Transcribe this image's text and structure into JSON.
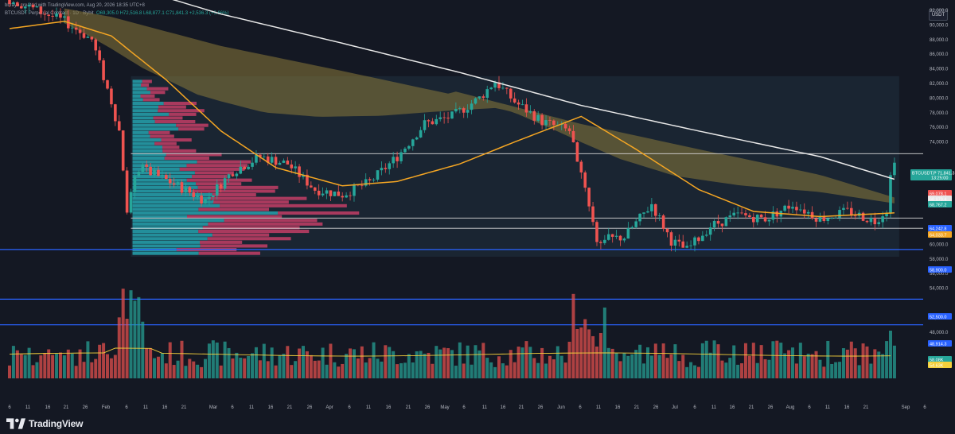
{
  "header": {
    "author_line": "bbrayb created with TradingView.com, Aug 20, 2026 18:35 UTC+8",
    "symbol_line": "BTCUSDT Perpetual Contract · 1D · Bybit",
    "ohlc_open": "O69,305.0",
    "ohlc_high": "H72,516.8",
    "ohlc_low": "L68,877.1",
    "ohlc_close": "C71,841.3",
    "ohlc_change": "+2,536.3 (+3.66%)",
    "currency": "USDT"
  },
  "colors": {
    "background": "#141823",
    "bull": "#26a69a",
    "bear": "#ef5350",
    "ema_orange": "#f5a623",
    "sma_white": "#e8e8e8",
    "cloud_fill": "#8a7a3a",
    "vp_bull": "#27b8c4",
    "vp_bear": "#e0436f",
    "level_blue": "#2962ff"
  },
  "chart_data": {
    "type": "candlestick",
    "title": "BTCUSDT Perpetual Contract · 1D · Bybit",
    "xlabel": "",
    "ylabel": "",
    "ylim": [
      42000,
      97000
    ],
    "x_ticks": [
      "6",
      "11",
      "16",
      "21",
      "26",
      "Feb",
      "6",
      "11",
      "16",
      "21",
      "Mar",
      "6",
      "11",
      "16",
      "21",
      "26",
      "Apr",
      "6",
      "11",
      "16",
      "21",
      "26",
      "May",
      "6",
      "11",
      "16",
      "21",
      "26",
      "Jun",
      "6",
      "11",
      "16",
      "21",
      "26",
      "Jul",
      "6",
      "11",
      "16",
      "21",
      "26",
      "Aug",
      "6",
      "11",
      "16",
      "21",
      "Sep",
      "6"
    ],
    "y_ticks": [
      "92,000.0",
      "90,000.0",
      "88,000.0",
      "86,000.0",
      "84,000.0",
      "82,000.0",
      "80,000.0",
      "78,000.0",
      "76,000.0",
      "74,000.0",
      "70,000.0",
      "66,000.0",
      "60,000.0",
      "58,000.0",
      "56,000.0",
      "54,000.0",
      "50,000.0",
      "48,000.0"
    ],
    "price_path": [
      {
        "date": "Jan 6",
        "close": 93500
      },
      {
        "date": "Jan 13",
        "close": 92000
      },
      {
        "date": "Jan 20",
        "close": 90500
      },
      {
        "date": "Jan 27",
        "close": 88000
      },
      {
        "date": "Feb 1",
        "close": 79500
      },
      {
        "date": "Feb 3",
        "close": 75500
      },
      {
        "date": "Feb 5",
        "close": 65000
      },
      {
        "date": "Feb 8",
        "close": 70500
      },
      {
        "date": "Feb 15",
        "close": 68800
      },
      {
        "date": "Feb 25",
        "close": 66000
      },
      {
        "date": "Mar 4",
        "close": 70000
      },
      {
        "date": "Mar 11",
        "close": 72000
      },
      {
        "date": "Mar 18",
        "close": 71000
      },
      {
        "date": "Mar 25",
        "close": 67500
      },
      {
        "date": "Apr 1",
        "close": 66800
      },
      {
        "date": "Apr 8",
        "close": 68500
      },
      {
        "date": "Apr 15",
        "close": 72000
      },
      {
        "date": "Apr 22",
        "close": 76500
      },
      {
        "date": "Apr 29",
        "close": 77500
      },
      {
        "date": "May 6",
        "close": 80000
      },
      {
        "date": "May 10",
        "close": 82300
      },
      {
        "date": "May 15",
        "close": 79500
      },
      {
        "date": "May 22",
        "close": 76800
      },
      {
        "date": "May 29",
        "close": 75500
      },
      {
        "date": "Jun 2",
        "close": 68000
      },
      {
        "date": "Jun 5",
        "close": 60500
      },
      {
        "date": "Jun 12",
        "close": 61000
      },
      {
        "date": "Jun 19",
        "close": 65500
      },
      {
        "date": "Jun 24",
        "close": 60500
      },
      {
        "date": "Jun 28",
        "close": 59200
      },
      {
        "date": "Jul 4",
        "close": 62500
      },
      {
        "date": "Jul 11",
        "close": 64000
      },
      {
        "date": "Jul 18",
        "close": 63500
      },
      {
        "date": "Jul 25",
        "close": 65500
      },
      {
        "date": "Aug 1",
        "close": 63500
      },
      {
        "date": "Aug 8",
        "close": 64500
      },
      {
        "date": "Aug 15",
        "close": 63200
      },
      {
        "date": "Aug 18",
        "close": 64800
      },
      {
        "date": "Aug 19",
        "close": 69300
      },
      {
        "date": "Aug 20",
        "close": 71841
      }
    ],
    "ema_orange": [
      {
        "date": "Jan 6",
        "value": 89500
      },
      {
        "date": "Jan 20",
        "value": 90500
      },
      {
        "date": "Feb 1",
        "value": 88500
      },
      {
        "date": "Feb 15",
        "value": 82500
      },
      {
        "date": "Mar 1",
        "value": 75500
      },
      {
        "date": "Mar 15",
        "value": 70500
      },
      {
        "date": "Apr 1",
        "value": 68000
      },
      {
        "date": "Apr 15",
        "value": 68600
      },
      {
        "date": "May 1",
        "value": 71000
      },
      {
        "date": "May 15",
        "value": 74000
      },
      {
        "date": "Jun 1",
        "value": 77500
      },
      {
        "date": "Jun 15",
        "value": 73000
      },
      {
        "date": "Jul 1",
        "value": 67500
      },
      {
        "date": "Jul 15",
        "value": 64500
      },
      {
        "date": "Aug 1",
        "value": 63800
      },
      {
        "date": "Aug 20",
        "value": 64300
      }
    ],
    "sma_white": [
      {
        "date": "Jan 6",
        "value": 99000
      },
      {
        "date": "Feb 1",
        "value": 96000
      },
      {
        "date": "Mar 1",
        "value": 91500
      },
      {
        "date": "Apr 1",
        "value": 87500
      },
      {
        "date": "May 1",
        "value": 83500
      },
      {
        "date": "Jun 1",
        "value": 79000
      },
      {
        "date": "Jul 1",
        "value": 75500
      },
      {
        "date": "Aug 1",
        "value": 72000
      },
      {
        "date": "Aug 20",
        "value": 68900
      }
    ],
    "horizontal_levels": [
      72400,
      63600,
      62200,
      59300,
      52500,
      49000
    ],
    "volume_profile_poc": 63600,
    "price_tags": [
      {
        "label": "BTCUSDT.P",
        "value": "71,841.3",
        "sub": "13:25:00",
        "color": "#26a69a"
      },
      {
        "label": "",
        "value": "69,078.1",
        "color": "#ef5350"
      },
      {
        "label": "",
        "value": "68,979.4",
        "color": "#e8e8e8"
      },
      {
        "label": "",
        "value": "68,767.2",
        "color": "#26a69a"
      },
      {
        "label": "",
        "value": "64,242.8",
        "color": "#2962ff"
      },
      {
        "label": "",
        "value": "64,033.7",
        "color": "#f5a623"
      },
      {
        "label": "",
        "value": "58,900.0",
        "color": "#2962ff"
      },
      {
        "label": "",
        "value": "52,500.0",
        "color": "#2962ff"
      },
      {
        "label": "",
        "value": "48,914.3",
        "color": "#2962ff"
      },
      {
        "label": "",
        "value": "58.08K",
        "color": "#26a69a"
      },
      {
        "label": "",
        "value": "54.63K",
        "color": "#f5d03b"
      }
    ]
  },
  "branding": {
    "logo_text": "TradingView"
  }
}
